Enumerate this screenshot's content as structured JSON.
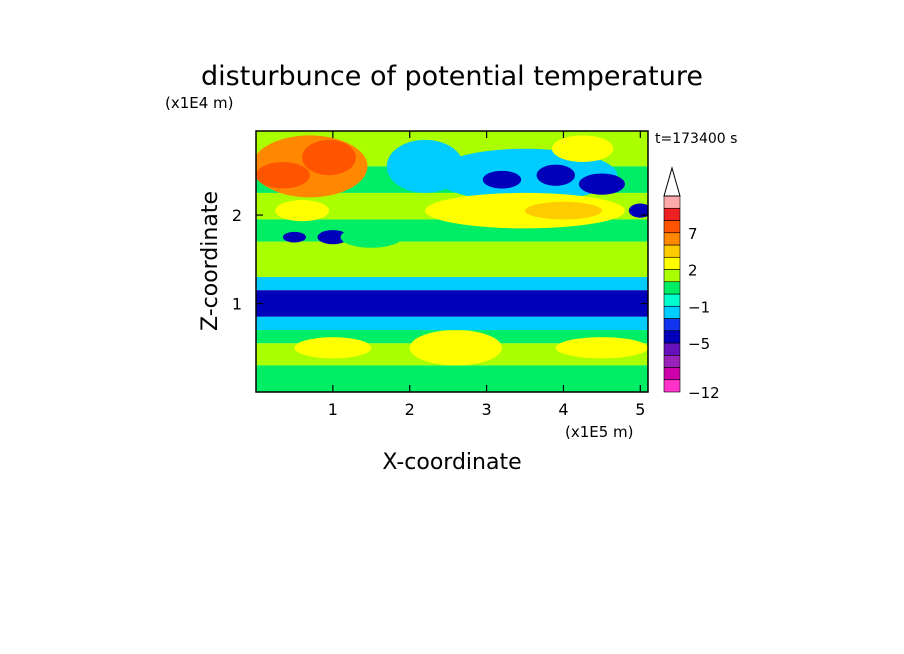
{
  "chart_data": {
    "type": "heatmap",
    "title": "disturbunce of potential temperature",
    "time_label": "t=173400 s",
    "xlabel": "X-coordinate",
    "ylabel": "Z-coordinate",
    "x_unit": "(x1E5 m)",
    "y_unit": "(x1E4 m)",
    "xlim": [
      0,
      5.1
    ],
    "ylim": [
      0,
      2.95
    ],
    "x_ticks": [
      1,
      2,
      3,
      4,
      5
    ],
    "x_tick_labels": [
      "1",
      "2",
      "3",
      "4",
      "5"
    ],
    "y_ticks": [
      1,
      2
    ],
    "y_tick_labels": [
      "1",
      "2"
    ],
    "colorbar": {
      "levels": [
        -12,
        -11,
        -9,
        -7,
        -5,
        -4,
        -3,
        -1,
        0,
        1,
        2,
        4,
        5,
        7,
        8,
        9,
        10
      ],
      "labeled_levels": [
        -12,
        -5,
        -1,
        2,
        7
      ],
      "labels": [
        "-12",
        "-5",
        "-1",
        "2",
        "7"
      ],
      "colors": [
        "#ff33cc",
        "#cc00aa",
        "#9922bb",
        "#6611bb",
        "#0000bb",
        "#1133ee",
        "#00ccff",
        "#00ffcc",
        "#00ee66",
        "#aaff00",
        "#ffff00",
        "#ffcc00",
        "#ff8800",
        "#ff5500",
        "#ee2222",
        "#ffaaaa"
      ],
      "extend_max": true
    },
    "bands": [
      {
        "z": [
          2.55,
          2.95
        ],
        "value": 1.5
      },
      {
        "z": [
          2.25,
          2.55
        ],
        "value": 0.6
      },
      {
        "z": [
          1.95,
          2.25
        ],
        "value": 1.5
      },
      {
        "z": [
          1.7,
          1.95
        ],
        "value": 0.5
      },
      {
        "z": [
          1.3,
          1.7
        ],
        "value": 1.2
      },
      {
        "z": [
          1.15,
          1.3
        ],
        "value": -1.5
      },
      {
        "z": [
          0.85,
          1.15
        ],
        "value": -4.5
      },
      {
        "z": [
          0.7,
          0.85
        ],
        "value": -1.5
      },
      {
        "z": [
          0.55,
          0.7
        ],
        "value": 0.5
      },
      {
        "z": [
          0.3,
          0.55
        ],
        "value": 1.5
      },
      {
        "z": [
          0.0,
          0.3
        ],
        "value": 0.5
      }
    ],
    "features": [
      {
        "x": 0.7,
        "z": 2.55,
        "rx": 0.75,
        "rz": 0.35,
        "value": 5.5
      },
      {
        "x": 0.35,
        "z": 2.45,
        "rx": 0.35,
        "rz": 0.15,
        "value": 7.5
      },
      {
        "x": 0.95,
        "z": 2.65,
        "rx": 0.35,
        "rz": 0.2,
        "value": 7.2
      },
      {
        "x": 2.2,
        "z": 2.55,
        "rx": 0.5,
        "rz": 0.3,
        "value": -2.0
      },
      {
        "x": 3.5,
        "z": 2.45,
        "rx": 1.2,
        "rz": 0.3,
        "value": -3.0
      },
      {
        "x": 3.2,
        "z": 2.4,
        "rx": 0.25,
        "rz": 0.1,
        "value": -4.5
      },
      {
        "x": 3.9,
        "z": 2.45,
        "rx": 0.25,
        "rz": 0.12,
        "value": -4.5
      },
      {
        "x": 4.5,
        "z": 2.35,
        "rx": 0.3,
        "rz": 0.12,
        "value": -4.5
      },
      {
        "x": 4.25,
        "z": 2.75,
        "rx": 0.4,
        "rz": 0.15,
        "value": 3.0
      },
      {
        "x": 3.5,
        "z": 2.05,
        "rx": 1.3,
        "rz": 0.2,
        "value": 3.5
      },
      {
        "x": 4.0,
        "z": 2.05,
        "rx": 0.5,
        "rz": 0.1,
        "value": 4.5
      },
      {
        "x": 0.6,
        "z": 2.05,
        "rx": 0.35,
        "rz": 0.12,
        "value": 3.5
      },
      {
        "x": 1.0,
        "z": 1.75,
        "rx": 0.2,
        "rz": 0.08,
        "value": -4.5
      },
      {
        "x": 0.5,
        "z": 1.75,
        "rx": 0.15,
        "rz": 0.06,
        "value": -4.5
      },
      {
        "x": 5.0,
        "z": 2.05,
        "rx": 0.15,
        "rz": 0.08,
        "value": -4.5
      },
      {
        "x": 2.6,
        "z": 0.5,
        "rx": 0.6,
        "rz": 0.2,
        "value": 2.2
      },
      {
        "x": 1.0,
        "z": 0.5,
        "rx": 0.5,
        "rz": 0.12,
        "value": 2.2
      },
      {
        "x": 4.5,
        "z": 0.5,
        "rx": 0.6,
        "rz": 0.12,
        "value": 2.2
      },
      {
        "x": 1.5,
        "z": 1.75,
        "rx": 0.4,
        "rz": 0.12,
        "value": 0.3
      }
    ]
  }
}
